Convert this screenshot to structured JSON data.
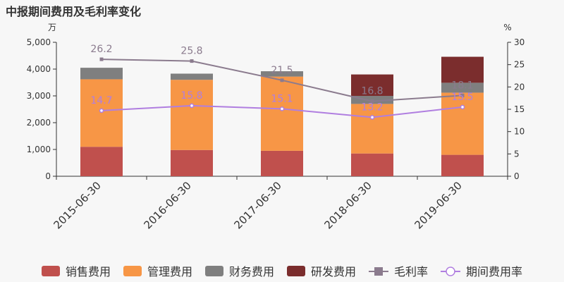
{
  "title": "中报期间费用及毛利率变化",
  "chart_data": {
    "type": "bar",
    "stacked": true,
    "categories": [
      "2015-06-30",
      "2016-06-30",
      "2017-06-30",
      "2018-06-30",
      "2019-06-30"
    ],
    "left_axis": {
      "unit": "万",
      "ylim": [
        0,
        5000
      ],
      "ticks": [
        0,
        1000,
        2000,
        3000,
        4000,
        5000
      ],
      "tick_labels": [
        "0",
        "1,000",
        "2,000",
        "3,000",
        "4,000",
        "5,000"
      ]
    },
    "right_axis": {
      "unit": "%",
      "ylim": [
        0,
        30
      ],
      "ticks": [
        0,
        5,
        10,
        15,
        20,
        25,
        30
      ],
      "tick_labels": [
        "0",
        "5",
        "10",
        "15",
        "20",
        "25",
        "30"
      ]
    },
    "series": [
      {
        "name": "销售费用",
        "kind": "bar",
        "axis": "left",
        "color": "#c0504d",
        "values": [
          1100,
          980,
          950,
          850,
          800
        ]
      },
      {
        "name": "管理费用",
        "kind": "bar",
        "axis": "left",
        "color": "#f79646",
        "values": [
          2520,
          2620,
          2770,
          1850,
          2320
        ]
      },
      {
        "name": "财务费用",
        "kind": "bar",
        "axis": "left",
        "color": "#7f7f7f",
        "values": [
          430,
          230,
          200,
          300,
          370
        ]
      },
      {
        "name": "研发费用",
        "kind": "bar",
        "axis": "left",
        "color": "#7b2d2d",
        "values": [
          0,
          0,
          0,
          800,
          970
        ]
      },
      {
        "name": "毛利率",
        "kind": "line",
        "axis": "right",
        "color": "#8b7b8e",
        "marker": "square",
        "values": [
          26.2,
          25.8,
          21.5,
          16.8,
          18.1
        ],
        "labels": [
          "26.2",
          "25.8",
          "21.5",
          "16.8",
          "18.1"
        ]
      },
      {
        "name": "期间费用率",
        "kind": "line",
        "axis": "right",
        "color": "#b07ee0",
        "marker": "circle",
        "values": [
          14.7,
          15.8,
          15.1,
          13.2,
          15.5
        ],
        "labels": [
          "14.7",
          "15.8",
          "15.1",
          "13.2",
          "15.5"
        ]
      }
    ],
    "legend_position": "bottom",
    "grid": false
  }
}
